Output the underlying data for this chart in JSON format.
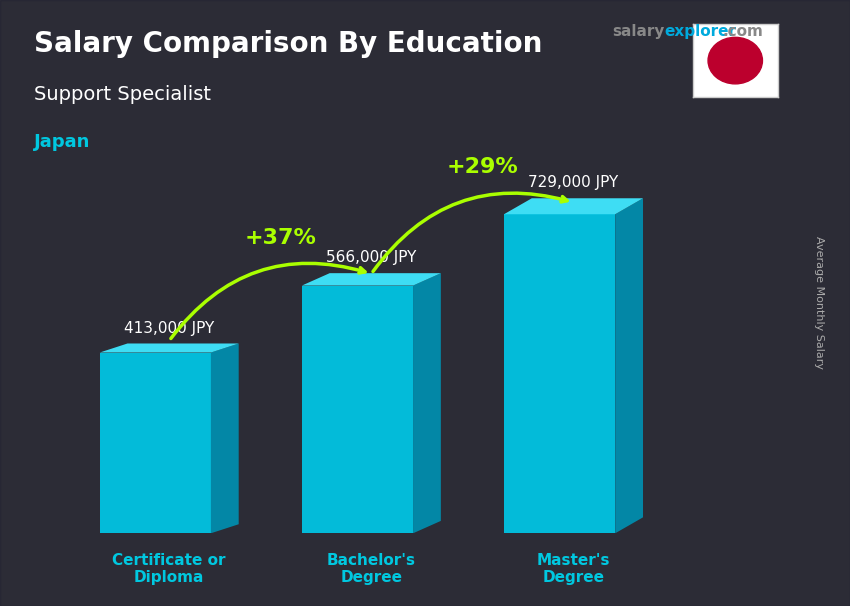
{
  "title": "Salary Comparison By Education",
  "subtitle": "Support Specialist",
  "country": "Japan",
  "categories": [
    "Certificate or\nDiploma",
    "Bachelor's\nDegree",
    "Master's\nDegree"
  ],
  "values": [
    413000,
    566000,
    729000
  ],
  "value_labels": [
    "413,000 JPY",
    "566,000 JPY",
    "729,000 JPY"
  ],
  "pct_labels": [
    "+37%",
    "+29%"
  ],
  "bar_color_top": "#00d4f0",
  "bar_color_bottom": "#0099cc",
  "bar_color_side": "#007aa3",
  "category_color": "#00c8e0",
  "title_color": "#ffffff",
  "subtitle_color": "#ffffff",
  "country_color": "#00c8e0",
  "value_label_color": "#ffffff",
  "pct_color": "#aaff00",
  "arrow_color": "#aaff00",
  "site_color_salary": "#555555",
  "site_color_explorer": "#00aadd",
  "site_color_com": "#555555",
  "background_alpha": 0.45,
  "bar_width": 0.55,
  "figsize": [
    8.5,
    6.06
  ],
  "dpi": 100,
  "ylim": [
    0,
    900000
  ],
  "ylabel": "Average Monthly Salary"
}
